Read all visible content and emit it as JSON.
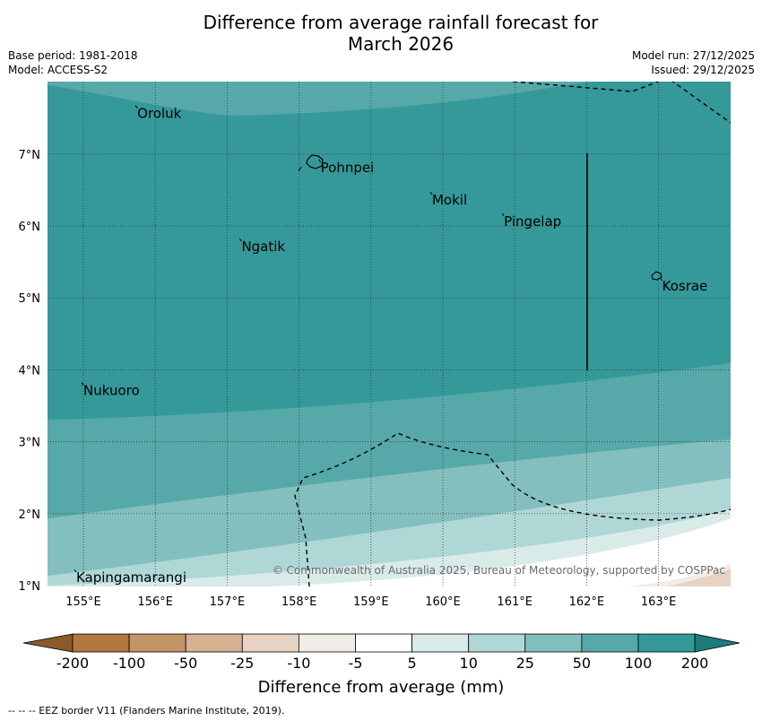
{
  "title_line1": "Difference from average rainfall forecast for",
  "title_line2": "March 2026",
  "meta": {
    "base_period": "Base period: 1981-2018",
    "model": "Model: ACCESS-S2",
    "model_run": "Model run: 27/12/2025",
    "issued": "Issued: 29/12/2025"
  },
  "map": {
    "lon_range": [
      154.5,
      164.0
    ],
    "lat_range": [
      1.0,
      8.0
    ],
    "x_ticks": [
      "155°E",
      "156°E",
      "157°E",
      "158°E",
      "159°E",
      "160°E",
      "161°E",
      "162°E",
      "163°E"
    ],
    "y_ticks": [
      "1°N",
      "2°N",
      "3°N",
      "4°N",
      "5°N",
      "6°N",
      "7°N"
    ],
    "places": [
      {
        "name": "Oroluk",
        "lon": 155.75,
        "lat": 7.6
      },
      {
        "name": "Pohnpei",
        "lon": 158.3,
        "lat": 6.85
      },
      {
        "name": "Mokil",
        "lon": 159.85,
        "lat": 6.4
      },
      {
        "name": "Pingelap",
        "lon": 160.85,
        "lat": 6.1
      },
      {
        "name": "Ngatik",
        "lon": 157.2,
        "lat": 5.75
      },
      {
        "name": "Kosrae",
        "lon": 163.05,
        "lat": 5.2
      },
      {
        "name": "Nukuoro",
        "lon": 155.0,
        "lat": 3.75
      },
      {
        "name": "Kapingamarangi",
        "lon": 154.9,
        "lat": 1.15
      }
    ],
    "copyright": "© Commonwealth of Australia 2025, Bureau of Meteorology, supported by COSPPac"
  },
  "colorbar": {
    "labels": [
      "-200",
      "-100",
      "-50",
      "-25",
      "-10",
      "-5",
      "5",
      "10",
      "25",
      "50",
      "100",
      "200"
    ],
    "colors": [
      "#8a5a2b",
      "#b07840",
      "#c49469",
      "#d6b293",
      "#e6d3c3",
      "#f2ece7",
      "#ffffff",
      "#d9ebe9",
      "#afd7d6",
      "#83bfbe",
      "#56a9a8",
      "#35999a",
      "#1e7b7b"
    ],
    "title": "Difference from average (mm)"
  },
  "footer": "--  --  -- EEZ border V11 (Flanders Marine Institute, 2019)."
}
